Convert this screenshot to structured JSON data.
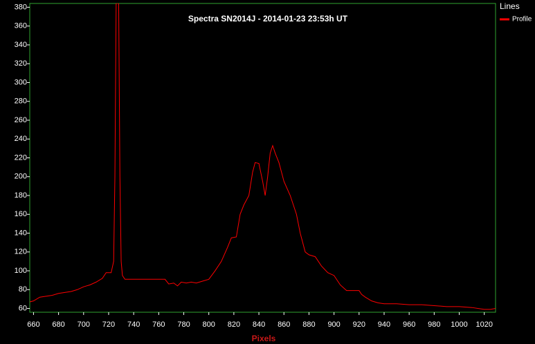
{
  "chart_data": {
    "type": "line",
    "title": "Spectra SN2014J - 2014-01-23 23:53h UT",
    "x_label": "Pixels",
    "legend_title": "Lines",
    "legend_position": "outside-right",
    "series": [
      {
        "name": "Profile",
        "color": "#ff0000",
        "x": [
          657,
          660,
          665,
          670,
          675,
          680,
          685,
          690,
          695,
          700,
          705,
          710,
          715,
          718,
          722,
          724,
          725,
          726,
          728,
          729,
          730,
          731,
          733,
          740,
          750,
          760,
          765,
          768,
          772,
          775,
          778,
          782,
          786,
          790,
          795,
          800,
          805,
          810,
          815,
          818,
          822,
          825,
          828,
          832,
          835,
          837,
          840,
          843,
          845,
          847,
          849,
          851,
          853,
          856,
          860,
          865,
          870,
          873,
          877,
          880,
          885,
          890,
          895,
          900,
          905,
          910,
          915,
          920,
          922,
          925,
          930,
          935,
          940,
          950,
          960,
          970,
          980,
          990,
          1000,
          1010,
          1020,
          1025,
          1029
        ],
        "values": [
          67,
          68,
          72,
          73,
          74,
          76,
          77,
          78,
          80,
          83,
          85,
          88,
          92,
          98,
          98,
          110,
          200,
          384,
          384,
          200,
          110,
          95,
          91,
          91,
          91,
          91,
          91,
          86,
          87,
          84,
          88,
          87,
          88,
          87,
          89,
          91,
          100,
          110,
          125,
          135,
          136,
          160,
          170,
          180,
          205,
          215,
          214,
          195,
          180,
          200,
          225,
          233,
          225,
          215,
          195,
          180,
          160,
          140,
          120,
          117,
          115,
          105,
          98,
          95,
          85,
          79,
          79,
          79,
          75,
          72,
          68,
          66,
          65,
          65,
          64,
          64,
          63,
          62,
          62,
          61,
          59,
          59,
          60
        ]
      }
    ],
    "xlim": [
      657,
      1029
    ],
    "ylim": [
      56,
      384
    ],
    "xticks": [
      660,
      680,
      700,
      720,
      740,
      760,
      780,
      800,
      820,
      840,
      860,
      880,
      900,
      920,
      940,
      960,
      980,
      1000,
      1020
    ],
    "yticks": [
      60,
      80,
      100,
      120,
      140,
      160,
      180,
      200,
      220,
      240,
      260,
      280,
      300,
      320,
      340,
      360,
      380
    ],
    "grid": false
  }
}
